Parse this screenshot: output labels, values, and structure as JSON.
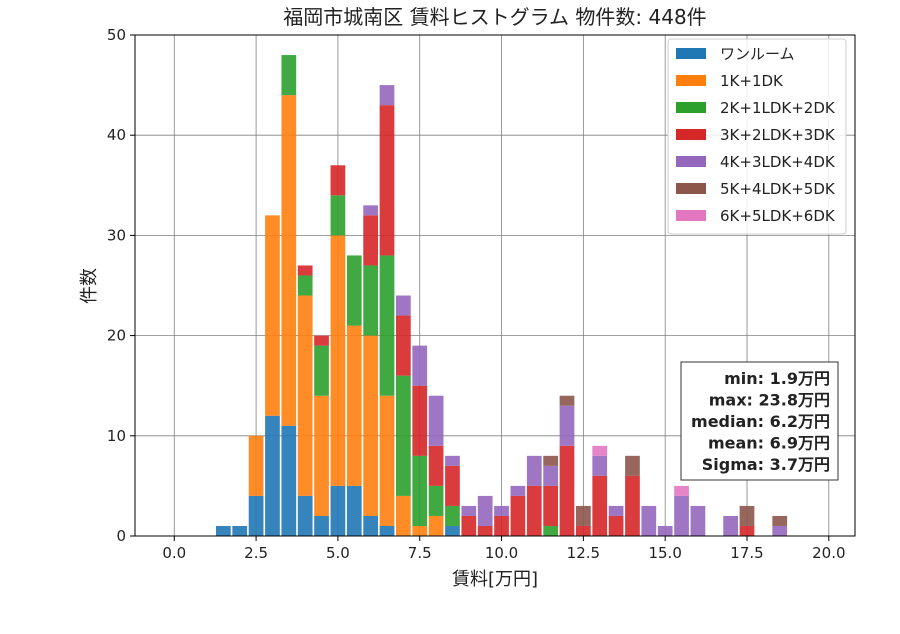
{
  "chart_data": {
    "type": "bar",
    "stacked": true,
    "title": "福岡市城南区 賃料ヒストグラム 物件数: 448件",
    "xlabel": "賃料[万円]",
    "ylabel": "件数",
    "xlim": [
      -1.2,
      20.8
    ],
    "ylim": [
      0,
      50
    ],
    "xticks": [
      0,
      2.5,
      5,
      7.5,
      10,
      12.5,
      15,
      17.5,
      20
    ],
    "xtick_labels": [
      "0.0",
      "2.5",
      "5.0",
      "7.5",
      "10.0",
      "12.5",
      "15.0",
      "17.5",
      "20.0"
    ],
    "yticks": [
      0,
      10,
      20,
      30,
      40,
      50
    ],
    "ytick_labels": [
      "0",
      "10",
      "20",
      "30",
      "40",
      "50"
    ],
    "grid": true,
    "legend_position": "top-right",
    "bin_width": 0.5,
    "bins": [
      1.5,
      2,
      2.5,
      3,
      3.5,
      4,
      4.5,
      5,
      5.5,
      6,
      6.5,
      7,
      7.5,
      8,
      8.5,
      9,
      9.5,
      10,
      10.5,
      11,
      11.5,
      12,
      12.5,
      13,
      13.5,
      14,
      14.5,
      15,
      15.5,
      16,
      16.5,
      17,
      17.5,
      18,
      18.5
    ],
    "series": [
      {
        "name": "ワンルーム",
        "color": "#1f77b4",
        "values": [
          1,
          1,
          4,
          12,
          11,
          4,
          2,
          5,
          5,
          2,
          1,
          0,
          0,
          0,
          1,
          0,
          0,
          0,
          0,
          0,
          0,
          0,
          0,
          0,
          0,
          0,
          0,
          0,
          0,
          0,
          0,
          0,
          0,
          0,
          0
        ]
      },
      {
        "name": "1K+1DK",
        "color": "#ff7f0e",
        "values": [
          0,
          0,
          6,
          20,
          33,
          20,
          12,
          25,
          16,
          18,
          13,
          4,
          1,
          2,
          0,
          0,
          0,
          0,
          0,
          0,
          0,
          0,
          0,
          0,
          0,
          0,
          0,
          0,
          0,
          0,
          0,
          0,
          0,
          0,
          0
        ]
      },
      {
        "name": "2K+1LDK+2DK",
        "color": "#2ca02c",
        "values": [
          0,
          0,
          0,
          0,
          4,
          2,
          5,
          4,
          7,
          7,
          14,
          12,
          7,
          3,
          2,
          0,
          0,
          0,
          0,
          0,
          1,
          0,
          0,
          0,
          0,
          0,
          0,
          0,
          0,
          0,
          0,
          0,
          0,
          0,
          0
        ]
      },
      {
        "name": "3K+2LDK+3DK",
        "color": "#d62728",
        "values": [
          0,
          0,
          0,
          0,
          0,
          1,
          1,
          3,
          0,
          5,
          15,
          6,
          7,
          4,
          4,
          2,
          1,
          2,
          4,
          5,
          4,
          9,
          1,
          6,
          2,
          6,
          0,
          0,
          0,
          0,
          0,
          0,
          1,
          0,
          0
        ]
      },
      {
        "name": "4K+3LDK+4DK",
        "color": "#9467bd",
        "values": [
          0,
          0,
          0,
          0,
          0,
          0,
          0,
          0,
          0,
          1,
          2,
          2,
          4,
          5,
          1,
          1,
          3,
          1,
          1,
          3,
          2,
          4,
          0,
          2,
          1,
          0,
          3,
          1,
          4,
          3,
          0,
          2,
          0,
          0,
          1
        ]
      },
      {
        "name": "5K+4LDK+5DK",
        "color": "#8c564b",
        "values": [
          0,
          0,
          0,
          0,
          0,
          0,
          0,
          0,
          0,
          0,
          0,
          0,
          0,
          0,
          0,
          0,
          0,
          0,
          0,
          0,
          1,
          1,
          2,
          0,
          0,
          2,
          0,
          0,
          0,
          0,
          0,
          0,
          2,
          0,
          1
        ]
      },
      {
        "name": "6K+5LDK+6DK",
        "color": "#e377c2",
        "values": [
          0,
          0,
          0,
          0,
          0,
          0,
          0,
          0,
          0,
          0,
          0,
          0,
          0,
          0,
          0,
          0,
          0,
          0,
          0,
          0,
          0,
          0,
          0,
          1,
          0,
          0,
          0,
          0,
          1,
          0,
          0,
          0,
          0,
          0,
          0
        ]
      }
    ],
    "stats": [
      "min: 1.9万円",
      "max: 23.8万円",
      "median: 6.2万円",
      "mean: 6.9万円",
      "Sigma: 3.7万円"
    ]
  }
}
